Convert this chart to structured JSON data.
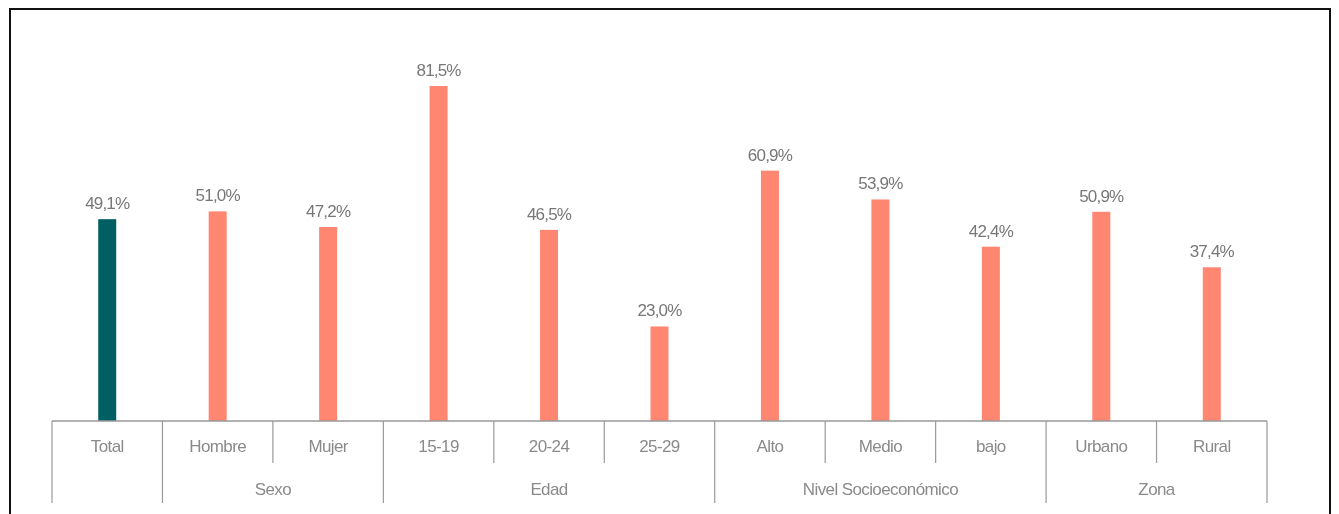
{
  "chart_data": {
    "type": "bar",
    "categories": [
      "Total",
      "Hombre",
      "Mujer",
      "15-19",
      "20-24",
      "25-29",
      "Alto",
      "Medio",
      "bajo",
      "Urbano",
      "Rural"
    ],
    "values": [
      49.1,
      51.0,
      47.2,
      81.5,
      46.5,
      23.0,
      60.9,
      53.9,
      42.4,
      50.9,
      37.4
    ],
    "value_labels": [
      "49,1%",
      "51,0%",
      "47,2%",
      "81,5%",
      "46,5%",
      "23,0%",
      "60,9%",
      "53,9%",
      "42,4%",
      "50,9%",
      "37,4%"
    ],
    "colors": [
      "#005f63",
      "#ff8670",
      "#ff8670",
      "#ff8670",
      "#ff8670",
      "#ff8670",
      "#ff8670",
      "#ff8670",
      "#ff8670",
      "#ff8670",
      "#ff8670"
    ],
    "annotations": [
      "Sexo",
      "Edad",
      "Nivel Socioeconómico",
      "Zona"
    ]
  }
}
